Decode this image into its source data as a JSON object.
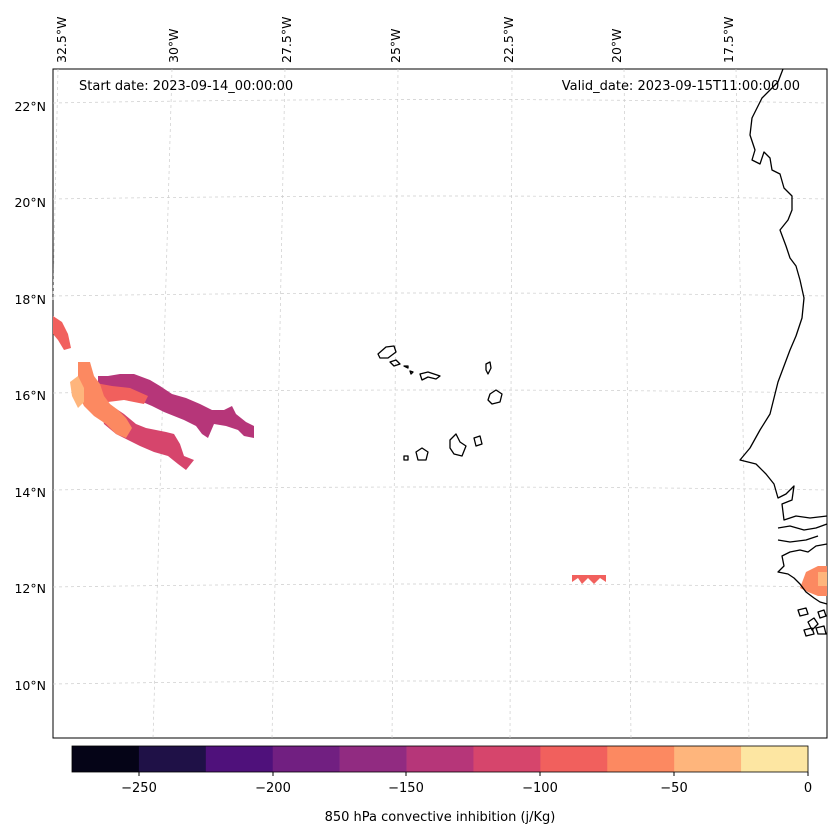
{
  "map": {
    "start_label": "Start date: 2023-09-14_00:00:00",
    "valid_label": "Valid_date: 2023-09-15T11:00:00.00",
    "lon_labels": [
      "32.5°W",
      "30°W",
      "27.5°W",
      "25°W",
      "22.5°W",
      "20°W",
      "17.5°W"
    ],
    "lat_labels": [
      "22°N",
      "20°N",
      "18°N",
      "16°N",
      "14°N",
      "12°N",
      "10°N"
    ]
  },
  "colorbar": {
    "title": "850 hPa convective inhibition (j/Kg)",
    "tick_labels": [
      "−250",
      "−200",
      "−150",
      "−100",
      "−50",
      "0"
    ],
    "levels": [
      -275,
      -250,
      -225,
      -200,
      -175,
      -150,
      -125,
      -100,
      -75,
      -50,
      -25,
      0
    ],
    "colors": [
      "#050417",
      "#1f1147",
      "#4f117b",
      "#711f81",
      "#912b81",
      "#b63679",
      "#d6456c",
      "#f1605d",
      "#fc8961",
      "#feb57c",
      "#fde6a2"
    ]
  }
}
